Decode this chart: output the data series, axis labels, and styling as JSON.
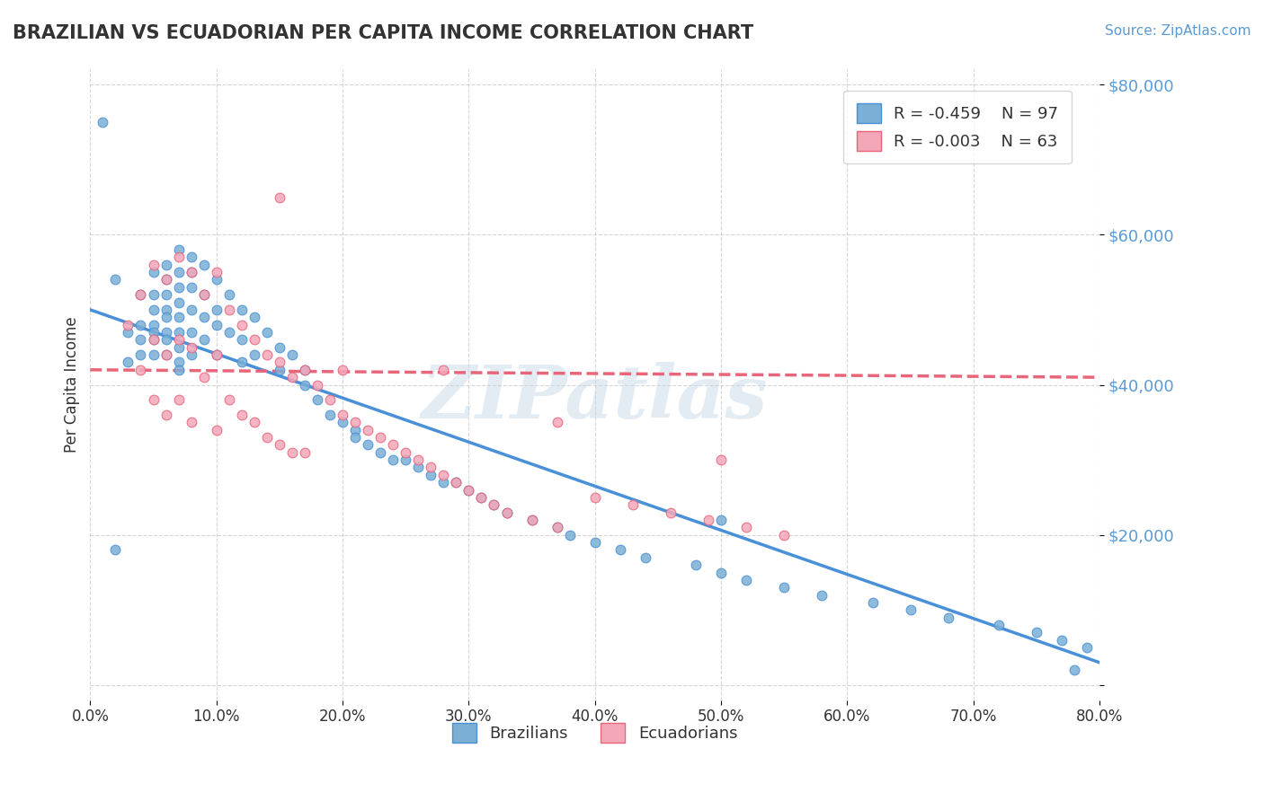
{
  "title": "BRAZILIAN VS ECUADORIAN PER CAPITA INCOME CORRELATION CHART",
  "source_text": "Source: ZipAtlas.com",
  "xlabel": "",
  "ylabel": "Per Capita Income",
  "xlim": [
    0.0,
    0.8
  ],
  "ylim": [
    -2000,
    82000
  ],
  "yticks": [
    0,
    20000,
    40000,
    60000,
    80000
  ],
  "ytick_labels": [
    "$0",
    "$20,000",
    "$40,000",
    "$60,000",
    "$80,000"
  ],
  "xticks": [
    0.0,
    0.1,
    0.2,
    0.3,
    0.4,
    0.5,
    0.6,
    0.7,
    0.8
  ],
  "xtick_labels": [
    "0.0%",
    "10.0%",
    "20.0%",
    "30.0%",
    "40.0%",
    "50.0%",
    "60.0%",
    "70.0%",
    "80.0%"
  ],
  "legend_R1": "R = -0.459",
  "legend_N1": "N = 97",
  "legend_R2": "R = -0.003",
  "legend_N2": "N = 63",
  "color_brazil": "#7BAFD4",
  "color_ecuador": "#F4A7B9",
  "color_brazil_line": "#4A90D9",
  "color_ecuador_line": "#E8657A",
  "watermark_text": "ZIPatlas",
  "watermark_color": "#C8D8E8",
  "axis_color": "#5B9BD5",
  "grid_color": "#CCCCCC",
  "brazil_scatter_x": [
    0.02,
    0.03,
    0.03,
    0.04,
    0.04,
    0.04,
    0.04,
    0.05,
    0.05,
    0.05,
    0.05,
    0.05,
    0.05,
    0.05,
    0.06,
    0.06,
    0.06,
    0.06,
    0.06,
    0.06,
    0.06,
    0.06,
    0.07,
    0.07,
    0.07,
    0.07,
    0.07,
    0.07,
    0.07,
    0.07,
    0.07,
    0.08,
    0.08,
    0.08,
    0.08,
    0.08,
    0.08,
    0.09,
    0.09,
    0.09,
    0.09,
    0.1,
    0.1,
    0.1,
    0.1,
    0.11,
    0.11,
    0.12,
    0.12,
    0.12,
    0.13,
    0.13,
    0.14,
    0.15,
    0.15,
    0.16,
    0.17,
    0.17,
    0.18,
    0.19,
    0.2,
    0.21,
    0.21,
    0.22,
    0.23,
    0.24,
    0.25,
    0.26,
    0.27,
    0.28,
    0.29,
    0.3,
    0.31,
    0.32,
    0.33,
    0.35,
    0.37,
    0.38,
    0.4,
    0.42,
    0.44,
    0.48,
    0.5,
    0.52,
    0.55,
    0.58,
    0.62,
    0.65,
    0.68,
    0.72,
    0.75,
    0.77,
    0.79,
    0.01,
    0.02,
    0.5,
    0.78
  ],
  "brazil_scatter_y": [
    54000,
    47000,
    43000,
    52000,
    48000,
    46000,
    44000,
    55000,
    52000,
    50000,
    48000,
    47000,
    46000,
    44000,
    56000,
    54000,
    52000,
    50000,
    49000,
    47000,
    46000,
    44000,
    58000,
    55000,
    53000,
    51000,
    49000,
    47000,
    45000,
    43000,
    42000,
    57000,
    55000,
    53000,
    50000,
    47000,
    44000,
    56000,
    52000,
    49000,
    46000,
    54000,
    50000,
    48000,
    44000,
    52000,
    47000,
    50000,
    46000,
    43000,
    49000,
    44000,
    47000,
    45000,
    42000,
    44000,
    42000,
    40000,
    38000,
    36000,
    35000,
    34000,
    33000,
    32000,
    31000,
    30000,
    30000,
    29000,
    28000,
    27000,
    27000,
    26000,
    25000,
    24000,
    23000,
    22000,
    21000,
    20000,
    19000,
    18000,
    17000,
    16000,
    15000,
    14000,
    13000,
    12000,
    11000,
    10000,
    9000,
    8000,
    7000,
    6000,
    5000,
    75000,
    18000,
    22000,
    2000
  ],
  "ecuador_scatter_x": [
    0.03,
    0.04,
    0.04,
    0.05,
    0.05,
    0.05,
    0.06,
    0.06,
    0.06,
    0.07,
    0.07,
    0.07,
    0.08,
    0.08,
    0.08,
    0.09,
    0.09,
    0.1,
    0.1,
    0.1,
    0.11,
    0.11,
    0.12,
    0.12,
    0.13,
    0.13,
    0.14,
    0.14,
    0.15,
    0.15,
    0.16,
    0.16,
    0.17,
    0.17,
    0.18,
    0.19,
    0.2,
    0.21,
    0.22,
    0.23,
    0.24,
    0.25,
    0.26,
    0.27,
    0.28,
    0.29,
    0.3,
    0.31,
    0.32,
    0.33,
    0.35,
    0.37,
    0.4,
    0.43,
    0.46,
    0.49,
    0.52,
    0.55,
    0.28,
    0.2,
    0.37,
    0.15,
    0.5
  ],
  "ecuador_scatter_y": [
    48000,
    52000,
    42000,
    56000,
    46000,
    38000,
    54000,
    44000,
    36000,
    57000,
    46000,
    38000,
    55000,
    45000,
    35000,
    52000,
    41000,
    55000,
    44000,
    34000,
    50000,
    38000,
    48000,
    36000,
    46000,
    35000,
    44000,
    33000,
    43000,
    32000,
    41000,
    31000,
    42000,
    31000,
    40000,
    38000,
    36000,
    35000,
    34000,
    33000,
    32000,
    31000,
    30000,
    29000,
    28000,
    27000,
    26000,
    25000,
    24000,
    23000,
    22000,
    21000,
    25000,
    24000,
    23000,
    22000,
    21000,
    20000,
    42000,
    42000,
    35000,
    65000,
    30000
  ],
  "brazil_line_x": [
    0.0,
    0.8
  ],
  "brazil_line_y": [
    50000,
    3000
  ],
  "ecuador_line_x": [
    0.0,
    0.8
  ],
  "ecuador_line_y": [
    42000,
    41000
  ]
}
